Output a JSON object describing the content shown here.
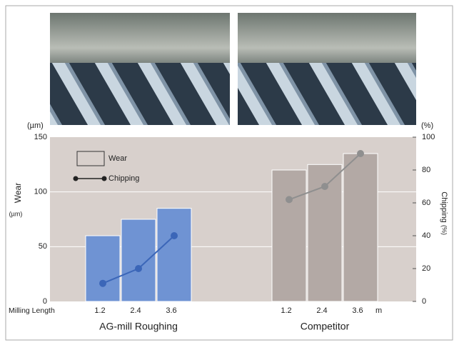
{
  "chart_data": {
    "type": "bar",
    "categories": [
      "1.2",
      "2.4",
      "3.6",
      "1.2",
      "2.4",
      "3.6"
    ],
    "groups": [
      "AG-mill Roughing",
      "Competitor"
    ],
    "group_colors": [
      "#6f93d3",
      "#b3a9a5"
    ],
    "line_colors": [
      "#3b66b8",
      "#8f8f8f"
    ],
    "series": [
      {
        "name": "Wear",
        "values": [
          60,
          75,
          85,
          120,
          125,
          135
        ]
      },
      {
        "name": "Chipping",
        "axis": "y2",
        "values": [
          11,
          20,
          40,
          62,
          70,
          90
        ]
      }
    ],
    "x_label": "Milling Length",
    "x_unit": "m",
    "y_label": "Wear",
    "y_unit": "(µm)",
    "y2_label": "Chipping",
    "y2_unit": "(%)",
    "ylim": [
      0,
      150
    ],
    "yticks": [
      0,
      50,
      100,
      150
    ],
    "y2lim": [
      0,
      100
    ],
    "y2ticks": [
      0,
      20,
      40,
      60,
      80,
      100
    ],
    "grid": true
  }
}
